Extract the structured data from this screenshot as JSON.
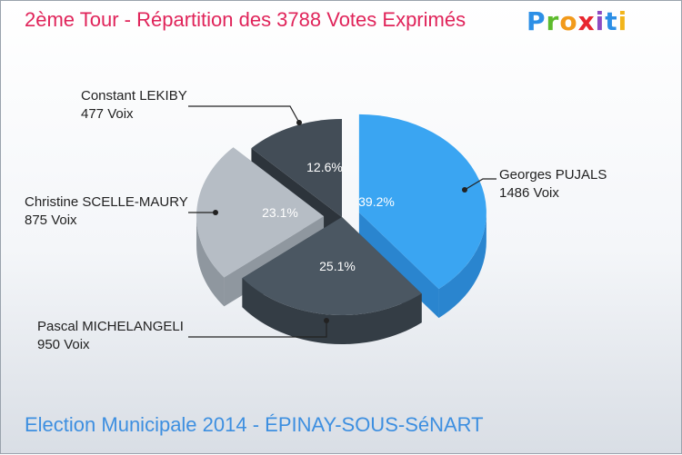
{
  "header": {
    "title": "2ème Tour - Répartition des 3788 Votes Exprimés"
  },
  "logo": {
    "letters": [
      "P",
      "r",
      "o",
      "x",
      "i",
      "t",
      "i"
    ],
    "colors": [
      "#2c8fe6",
      "#5dbb2d",
      "#f29a1b",
      "#e8262f",
      "#8e4bc2",
      "#2c8fe6",
      "#f2b51b"
    ]
  },
  "footer": {
    "subtitle": "Election Municipale 2014 - ÉPINAY-SOUS-SéNART"
  },
  "chart_data": {
    "type": "pie",
    "title": "2ème Tour - Répartition des 3788 Votes Exprimés",
    "total_votes": 3788,
    "slices": [
      {
        "name": "Georges PUJALS",
        "votes_label": "1486 Voix",
        "value": 1486,
        "percent_label": "39.2%",
        "color": "#3aa5f2",
        "side_color": "#2a85cf",
        "exploded": true
      },
      {
        "name": "Pascal MICHELANGELI",
        "votes_label": "950 Voix",
        "value": 950,
        "percent_label": "25.1%",
        "color": "#4b5762",
        "side_color": "#343d45",
        "exploded": false
      },
      {
        "name": "Christine SCELLE-MAURY",
        "votes_label": "875 Voix",
        "value": 875,
        "percent_label": "23.1%",
        "color": "#b6bdc5",
        "side_color": "#8f979f",
        "exploded": true
      },
      {
        "name": "Constant LEKIBY",
        "votes_label": "477 Voix",
        "value": 477,
        "percent_label": "12.6%",
        "color": "#434d57",
        "side_color": "#2d343b",
        "exploded": false
      }
    ]
  }
}
